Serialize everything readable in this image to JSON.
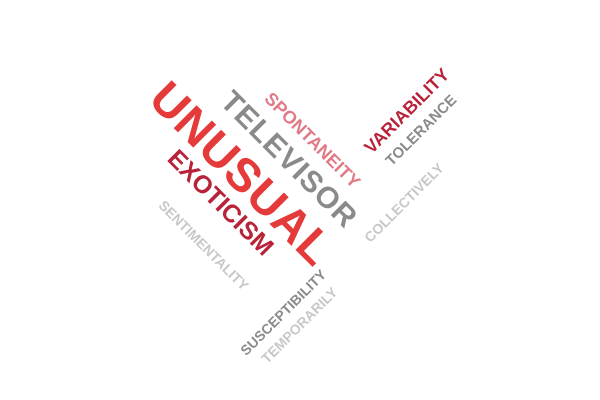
{
  "word_cloud": {
    "words": {
      "unusual": "UNUSUAL",
      "televisor": "TELEVISOR",
      "spontaneity": "SPONTANEITY",
      "exoticism": "EXOTICISM",
      "sentimentality": "SENTIMENTALITY",
      "variability": "VARIABILITY",
      "tolerance": "TOLERANCE",
      "collectively": "COLLECTIVELY",
      "susceptibility": "SUSCEPTIBILITY",
      "temporarily": "TEMPORARILY"
    },
    "colors": {
      "bright_red": "#e43a3a",
      "crimson": "#b8233a",
      "pink": "#e07a87",
      "gray": "#8a8a8a",
      "light_gray": "#c8c8c8",
      "background": "#ffffff"
    }
  }
}
